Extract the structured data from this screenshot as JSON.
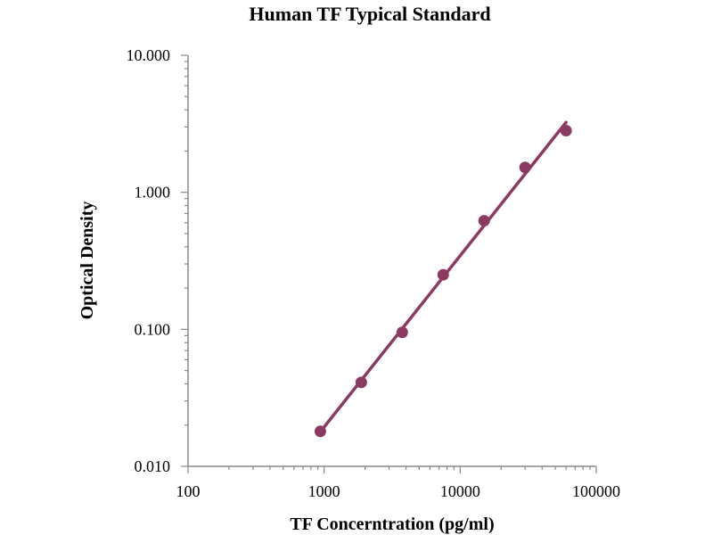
{
  "chart_data": {
    "type": "scatter",
    "title": "Human TF Typical Standard",
    "xlabel": "TF Concerntration (pg/ml)",
    "ylabel": "Optical Density",
    "x_scale": "log",
    "y_scale": "log",
    "xlim": [
      100,
      100000
    ],
    "ylim": [
      0.01,
      10
    ],
    "x_ticks": [
      100,
      1000,
      10000,
      100000
    ],
    "x_tick_labels": [
      "100",
      "1000",
      "10000",
      "100000"
    ],
    "y_ticks": [
      0.01,
      0.1,
      1,
      10
    ],
    "y_tick_labels": [
      "0.010",
      "0.100",
      "1.000",
      "10.000"
    ],
    "grid": false,
    "legend": "none",
    "series": [
      {
        "color": "#8B3A62",
        "points": [
          {
            "x": 938,
            "y": 0.018
          },
          {
            "x": 1875,
            "y": 0.041
          },
          {
            "x": 3750,
            "y": 0.095
          },
          {
            "x": 7500,
            "y": 0.25
          },
          {
            "x": 15000,
            "y": 0.62
          },
          {
            "x": 30000,
            "y": 1.52
          },
          {
            "x": 60000,
            "y": 2.82
          }
        ]
      }
    ],
    "fit_line": {
      "color": "#8B3A62",
      "x_start": 938,
      "x_end": 60000
    }
  }
}
